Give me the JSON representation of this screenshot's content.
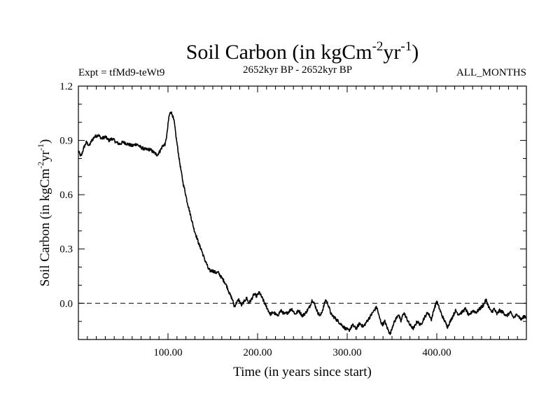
{
  "chart_data": {
    "type": "line",
    "title_main": "Soil Carbon (in kgCm",
    "title_sup1": "-2",
    "title_mid": "yr",
    "title_sup2": "-1",
    "title_close": ")",
    "subtitle_left": "Expt = tfMd9-teWt9",
    "subtitle_center": "2652kyr BP - 2652kyr BP",
    "subtitle_right": "ALL_MONTHS",
    "ylabel_main": "Soil Carbon (in kgCm",
    "ylabel_sup1": "-2",
    "ylabel_mid": "yr",
    "ylabel_sup2": "-1",
    "ylabel_close": ")",
    "xlabel": "Time (in years since start)",
    "xlim": [
      0,
      500
    ],
    "ylim": [
      -0.2,
      1.2
    ],
    "x_tick_values": [
      100,
      200,
      300,
      400
    ],
    "x_tick_labels": [
      "100.00",
      "200.00",
      "300.00",
      "400.00"
    ],
    "y_tick_values": [
      0.0,
      0.3,
      0.6,
      0.9,
      1.2
    ],
    "y_tick_labels": [
      "0.0",
      "0.3",
      "0.6",
      "0.9",
      "1.2"
    ],
    "zero_line": 0.0,
    "series": [
      {
        "name": "Soil Carbon",
        "color": "#000000",
        "points": [
          [
            0,
            0.84
          ],
          [
            3,
            0.81
          ],
          [
            6,
            0.86
          ],
          [
            9,
            0.89
          ],
          [
            12,
            0.87
          ],
          [
            15,
            0.9
          ],
          [
            18,
            0.92
          ],
          [
            22,
            0.93
          ],
          [
            26,
            0.91
          ],
          [
            30,
            0.92
          ],
          [
            34,
            0.9
          ],
          [
            38,
            0.91
          ],
          [
            42,
            0.89
          ],
          [
            46,
            0.88
          ],
          [
            50,
            0.89
          ],
          [
            55,
            0.88
          ],
          [
            60,
            0.87
          ],
          [
            65,
            0.88
          ],
          [
            70,
            0.86
          ],
          [
            75,
            0.85
          ],
          [
            80,
            0.85
          ],
          [
            85,
            0.83
          ],
          [
            88,
            0.82
          ],
          [
            91,
            0.84
          ],
          [
            94,
            0.87
          ],
          [
            97,
            0.88
          ],
          [
            99,
            0.94
          ],
          [
            101,
            1.03
          ],
          [
            103,
            1.06
          ],
          [
            105,
            1.04
          ],
          [
            107,
            1.0
          ],
          [
            109,
            0.92
          ],
          [
            111,
            0.85
          ],
          [
            113,
            0.78
          ],
          [
            115,
            0.72
          ],
          [
            117,
            0.66
          ],
          [
            119,
            0.62
          ],
          [
            121,
            0.57
          ],
          [
            123,
            0.53
          ],
          [
            125,
            0.49
          ],
          [
            127,
            0.45
          ],
          [
            129,
            0.41
          ],
          [
            131,
            0.38
          ],
          [
            133,
            0.35
          ],
          [
            135,
            0.32
          ],
          [
            137,
            0.3
          ],
          [
            139,
            0.27
          ],
          [
            141,
            0.24
          ],
          [
            143,
            0.22
          ],
          [
            145,
            0.19
          ],
          [
            147,
            0.18
          ],
          [
            150,
            0.18
          ],
          [
            153,
            0.17
          ],
          [
            156,
            0.17
          ],
          [
            160,
            0.14
          ],
          [
            163,
            0.12
          ],
          [
            166,
            0.09
          ],
          [
            169,
            0.05
          ],
          [
            172,
            0.02
          ],
          [
            174,
            -0.02
          ],
          [
            176,
            0.0
          ],
          [
            179,
            0.02
          ],
          [
            182,
            -0.01
          ],
          [
            185,
            0.01
          ],
          [
            188,
            0.03
          ],
          [
            190,
            0.0
          ],
          [
            193,
            0.02
          ],
          [
            196,
            0.05
          ],
          [
            199,
            0.04
          ],
          [
            202,
            0.06
          ],
          [
            205,
            0.03
          ],
          [
            208,
            0.0
          ],
          [
            211,
            -0.03
          ],
          [
            214,
            -0.06
          ],
          [
            218,
            -0.05
          ],
          [
            222,
            -0.07
          ],
          [
            226,
            -0.04
          ],
          [
            230,
            -0.06
          ],
          [
            234,
            -0.05
          ],
          [
            238,
            -0.03
          ],
          [
            242,
            -0.06
          ],
          [
            246,
            -0.04
          ],
          [
            250,
            -0.07
          ],
          [
            254,
            -0.05
          ],
          [
            258,
            -0.02
          ],
          [
            261,
            0.02
          ],
          [
            264,
            -0.01
          ],
          [
            267,
            -0.05
          ],
          [
            270,
            -0.07
          ],
          [
            273,
            -0.03
          ],
          [
            276,
            0.02
          ],
          [
            279,
            -0.01
          ],
          [
            282,
            -0.06
          ],
          [
            286,
            -0.08
          ],
          [
            290,
            -0.1
          ],
          [
            294,
            -0.12
          ],
          [
            298,
            -0.14
          ],
          [
            302,
            -0.15
          ],
          [
            306,
            -0.12
          ],
          [
            310,
            -0.14
          ],
          [
            314,
            -0.11
          ],
          [
            318,
            -0.13
          ],
          [
            322,
            -0.1
          ],
          [
            326,
            -0.07
          ],
          [
            330,
            -0.04
          ],
          [
            333,
            -0.02
          ],
          [
            336,
            -0.08
          ],
          [
            339,
            -0.12
          ],
          [
            342,
            -0.1
          ],
          [
            345,
            -0.14
          ],
          [
            348,
            -0.17
          ],
          [
            351,
            -0.12
          ],
          [
            354,
            -0.09
          ],
          [
            357,
            -0.06
          ],
          [
            360,
            -0.1
          ],
          [
            363,
            -0.05
          ],
          [
            366,
            -0.08
          ],
          [
            370,
            -0.12
          ],
          [
            374,
            -0.14
          ],
          [
            378,
            -0.1
          ],
          [
            382,
            -0.12
          ],
          [
            386,
            -0.08
          ],
          [
            390,
            -0.05
          ],
          [
            394,
            -0.09
          ],
          [
            397,
            -0.03
          ],
          [
            400,
            0.01
          ],
          [
            403,
            -0.03
          ],
          [
            406,
            -0.07
          ],
          [
            409,
            -0.1
          ],
          [
            412,
            -0.13
          ],
          [
            415,
            -0.1
          ],
          [
            418,
            -0.07
          ],
          [
            421,
            -0.04
          ],
          [
            424,
            -0.06
          ],
          [
            428,
            -0.05
          ],
          [
            432,
            -0.03
          ],
          [
            436,
            -0.07
          ],
          [
            440,
            -0.04
          ],
          [
            444,
            -0.05
          ],
          [
            448,
            -0.03
          ],
          [
            452,
            -0.01
          ],
          [
            455,
            0.02
          ],
          [
            458,
            -0.02
          ],
          [
            461,
            -0.05
          ],
          [
            464,
            -0.03
          ],
          [
            467,
            -0.06
          ],
          [
            470,
            -0.04
          ],
          [
            474,
            -0.05
          ],
          [
            478,
            -0.07
          ],
          [
            482,
            -0.05
          ],
          [
            486,
            -0.08
          ],
          [
            490,
            -0.06
          ],
          [
            494,
            -0.09
          ],
          [
            498,
            -0.07
          ],
          [
            500,
            -0.08
          ]
        ]
      }
    ]
  }
}
